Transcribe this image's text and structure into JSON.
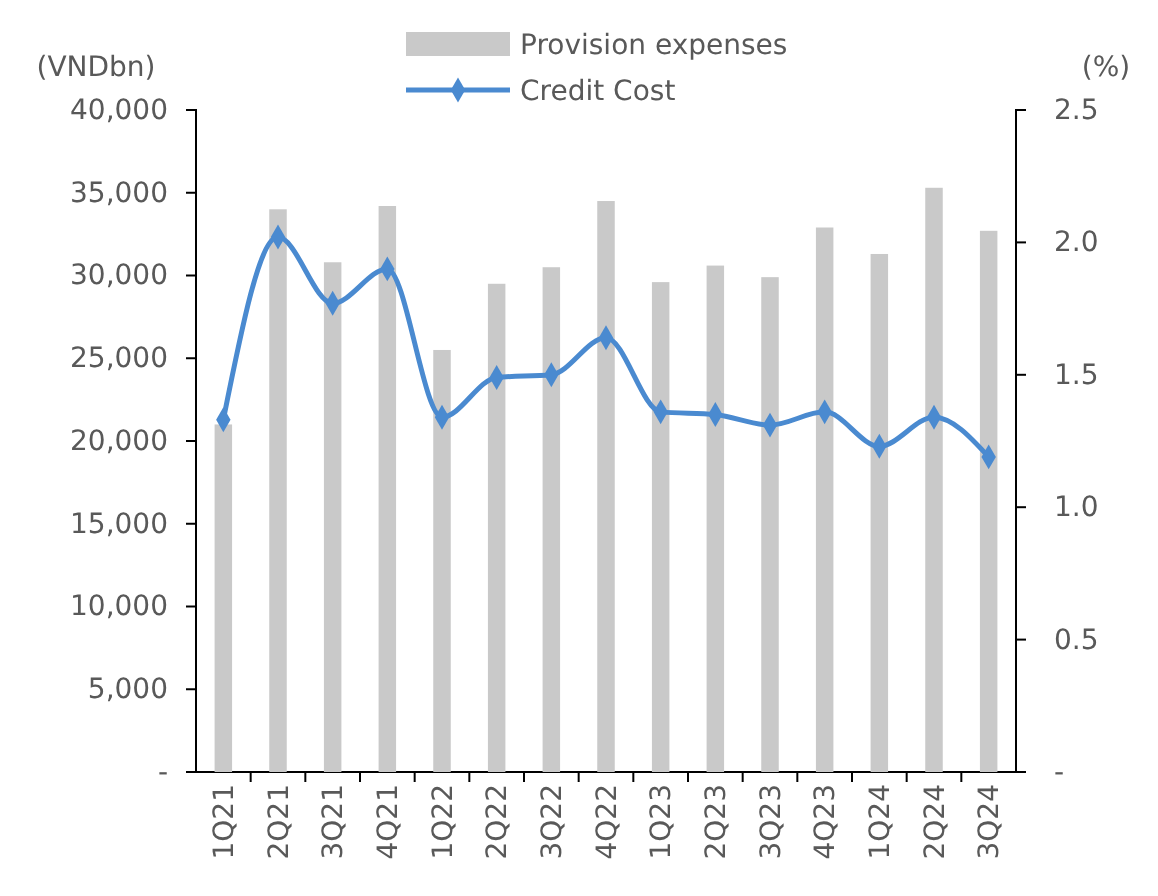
{
  "chart_data": {
    "type": "bar",
    "ylabel": "(VNDbn)",
    "y2label": "(%)",
    "categories": [
      "1Q21",
      "2Q21",
      "3Q21",
      "4Q21",
      "1Q22",
      "2Q22",
      "3Q22",
      "4Q22",
      "1Q23",
      "2Q23",
      "3Q23",
      "4Q23",
      "1Q24",
      "2Q24",
      "3Q24"
    ],
    "series": [
      {
        "name": "Provision expenses",
        "color": "#c9c9c9",
        "values": [
          21000,
          34000,
          30800,
          34200,
          25500,
          29500,
          30500,
          34500,
          29600,
          30600,
          29900,
          32900,
          31300,
          35300,
          32700
        ]
      },
      {
        "name": "Credit Cost",
        "type": "line",
        "axis": "y2",
        "color": "#4a8ad0",
        "marker": "diamond",
        "values": [
          1.33,
          2.02,
          1.77,
          1.9,
          1.34,
          1.49,
          1.5,
          1.64,
          1.36,
          1.35,
          1.31,
          1.36,
          1.23,
          1.34,
          1.19
        ]
      }
    ],
    "ylim": [
      0,
      40000
    ],
    "yticks": [
      {
        "value": 0,
        "label": "-"
      },
      {
        "value": 5000,
        "label": "5,000"
      },
      {
        "value": 10000,
        "label": "10,000"
      },
      {
        "value": 15000,
        "label": "15,000"
      },
      {
        "value": 20000,
        "label": "20,000"
      },
      {
        "value": 25000,
        "label": "25,000"
      },
      {
        "value": 30000,
        "label": "30,000"
      },
      {
        "value": 35000,
        "label": "35,000"
      },
      {
        "value": 40000,
        "label": "40,000"
      }
    ],
    "y2lim": [
      0,
      2.5
    ],
    "y2ticks": [
      {
        "value": 0,
        "label": "-"
      },
      {
        "value": 0.5,
        "label": "0.5"
      },
      {
        "value": 1,
        "label": "1.0"
      },
      {
        "value": 1.5,
        "label": "1.5"
      },
      {
        "value": 2,
        "label": "2.0"
      },
      {
        "value": 2.5,
        "label": "2.5"
      }
    ],
    "grid": false,
    "legend": "top"
  }
}
